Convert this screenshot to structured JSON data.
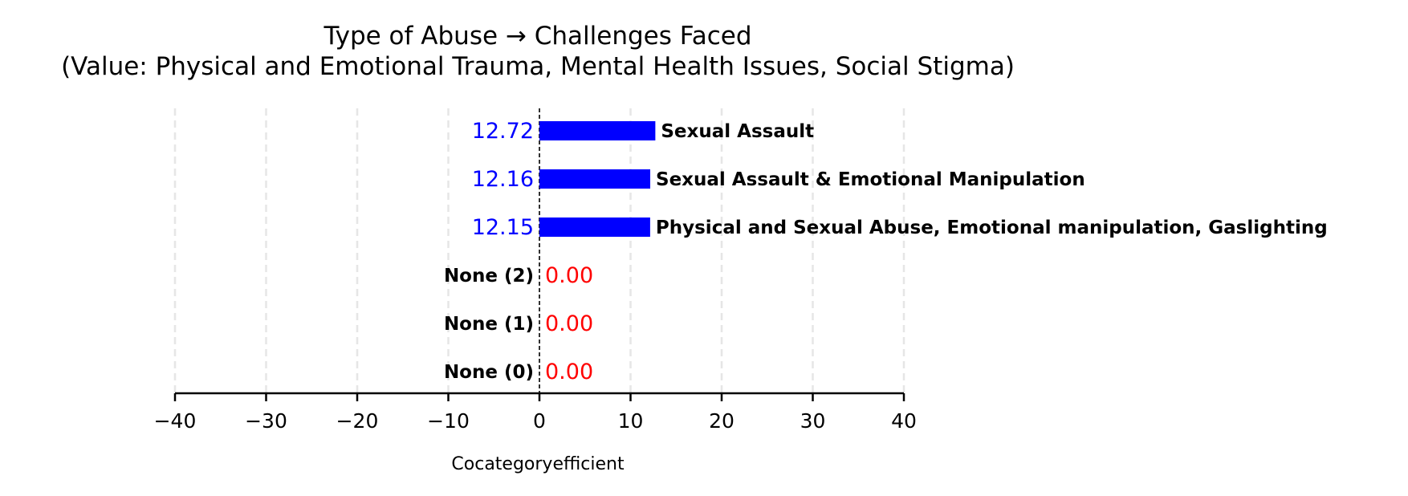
{
  "chart_data": {
    "type": "bar",
    "orientation": "horizontal",
    "title_line1": "Type of Abuse → Challenges Faced",
    "title_line2": "(Value: Physical and Emotional Trauma, Mental Health Issues, Social Stigma)",
    "xlabel": "Cocategoryefficient",
    "categories": [
      "Sexual Assault",
      "Sexual Assault & Emotional Manipulation",
      "Physical and Sexual Abuse, Emotional manipulation, Gaslighting",
      "None (2)",
      "None (1)",
      "None (0)"
    ],
    "values": [
      12.72,
      12.16,
      12.15,
      0.0,
      0.0,
      0.0
    ],
    "value_labels": [
      "12.72",
      "12.16",
      "12.15",
      "0.00",
      "0.00",
      "0.00"
    ],
    "xlim": [
      -40,
      40
    ],
    "xticks": [
      -40,
      -30,
      -20,
      -10,
      0,
      10,
      20,
      30,
      40
    ],
    "xtick_labels": [
      "−40",
      "−30",
      "−20",
      "−10",
      "0",
      "10",
      "20",
      "30",
      "40"
    ],
    "grid": "vertical dashed",
    "colors": {
      "bar": "#0000ff",
      "positive_value": "#0000ff",
      "zero_value": "#ff0000",
      "grid": "#e6e6e6",
      "axis": "#000000"
    }
  }
}
